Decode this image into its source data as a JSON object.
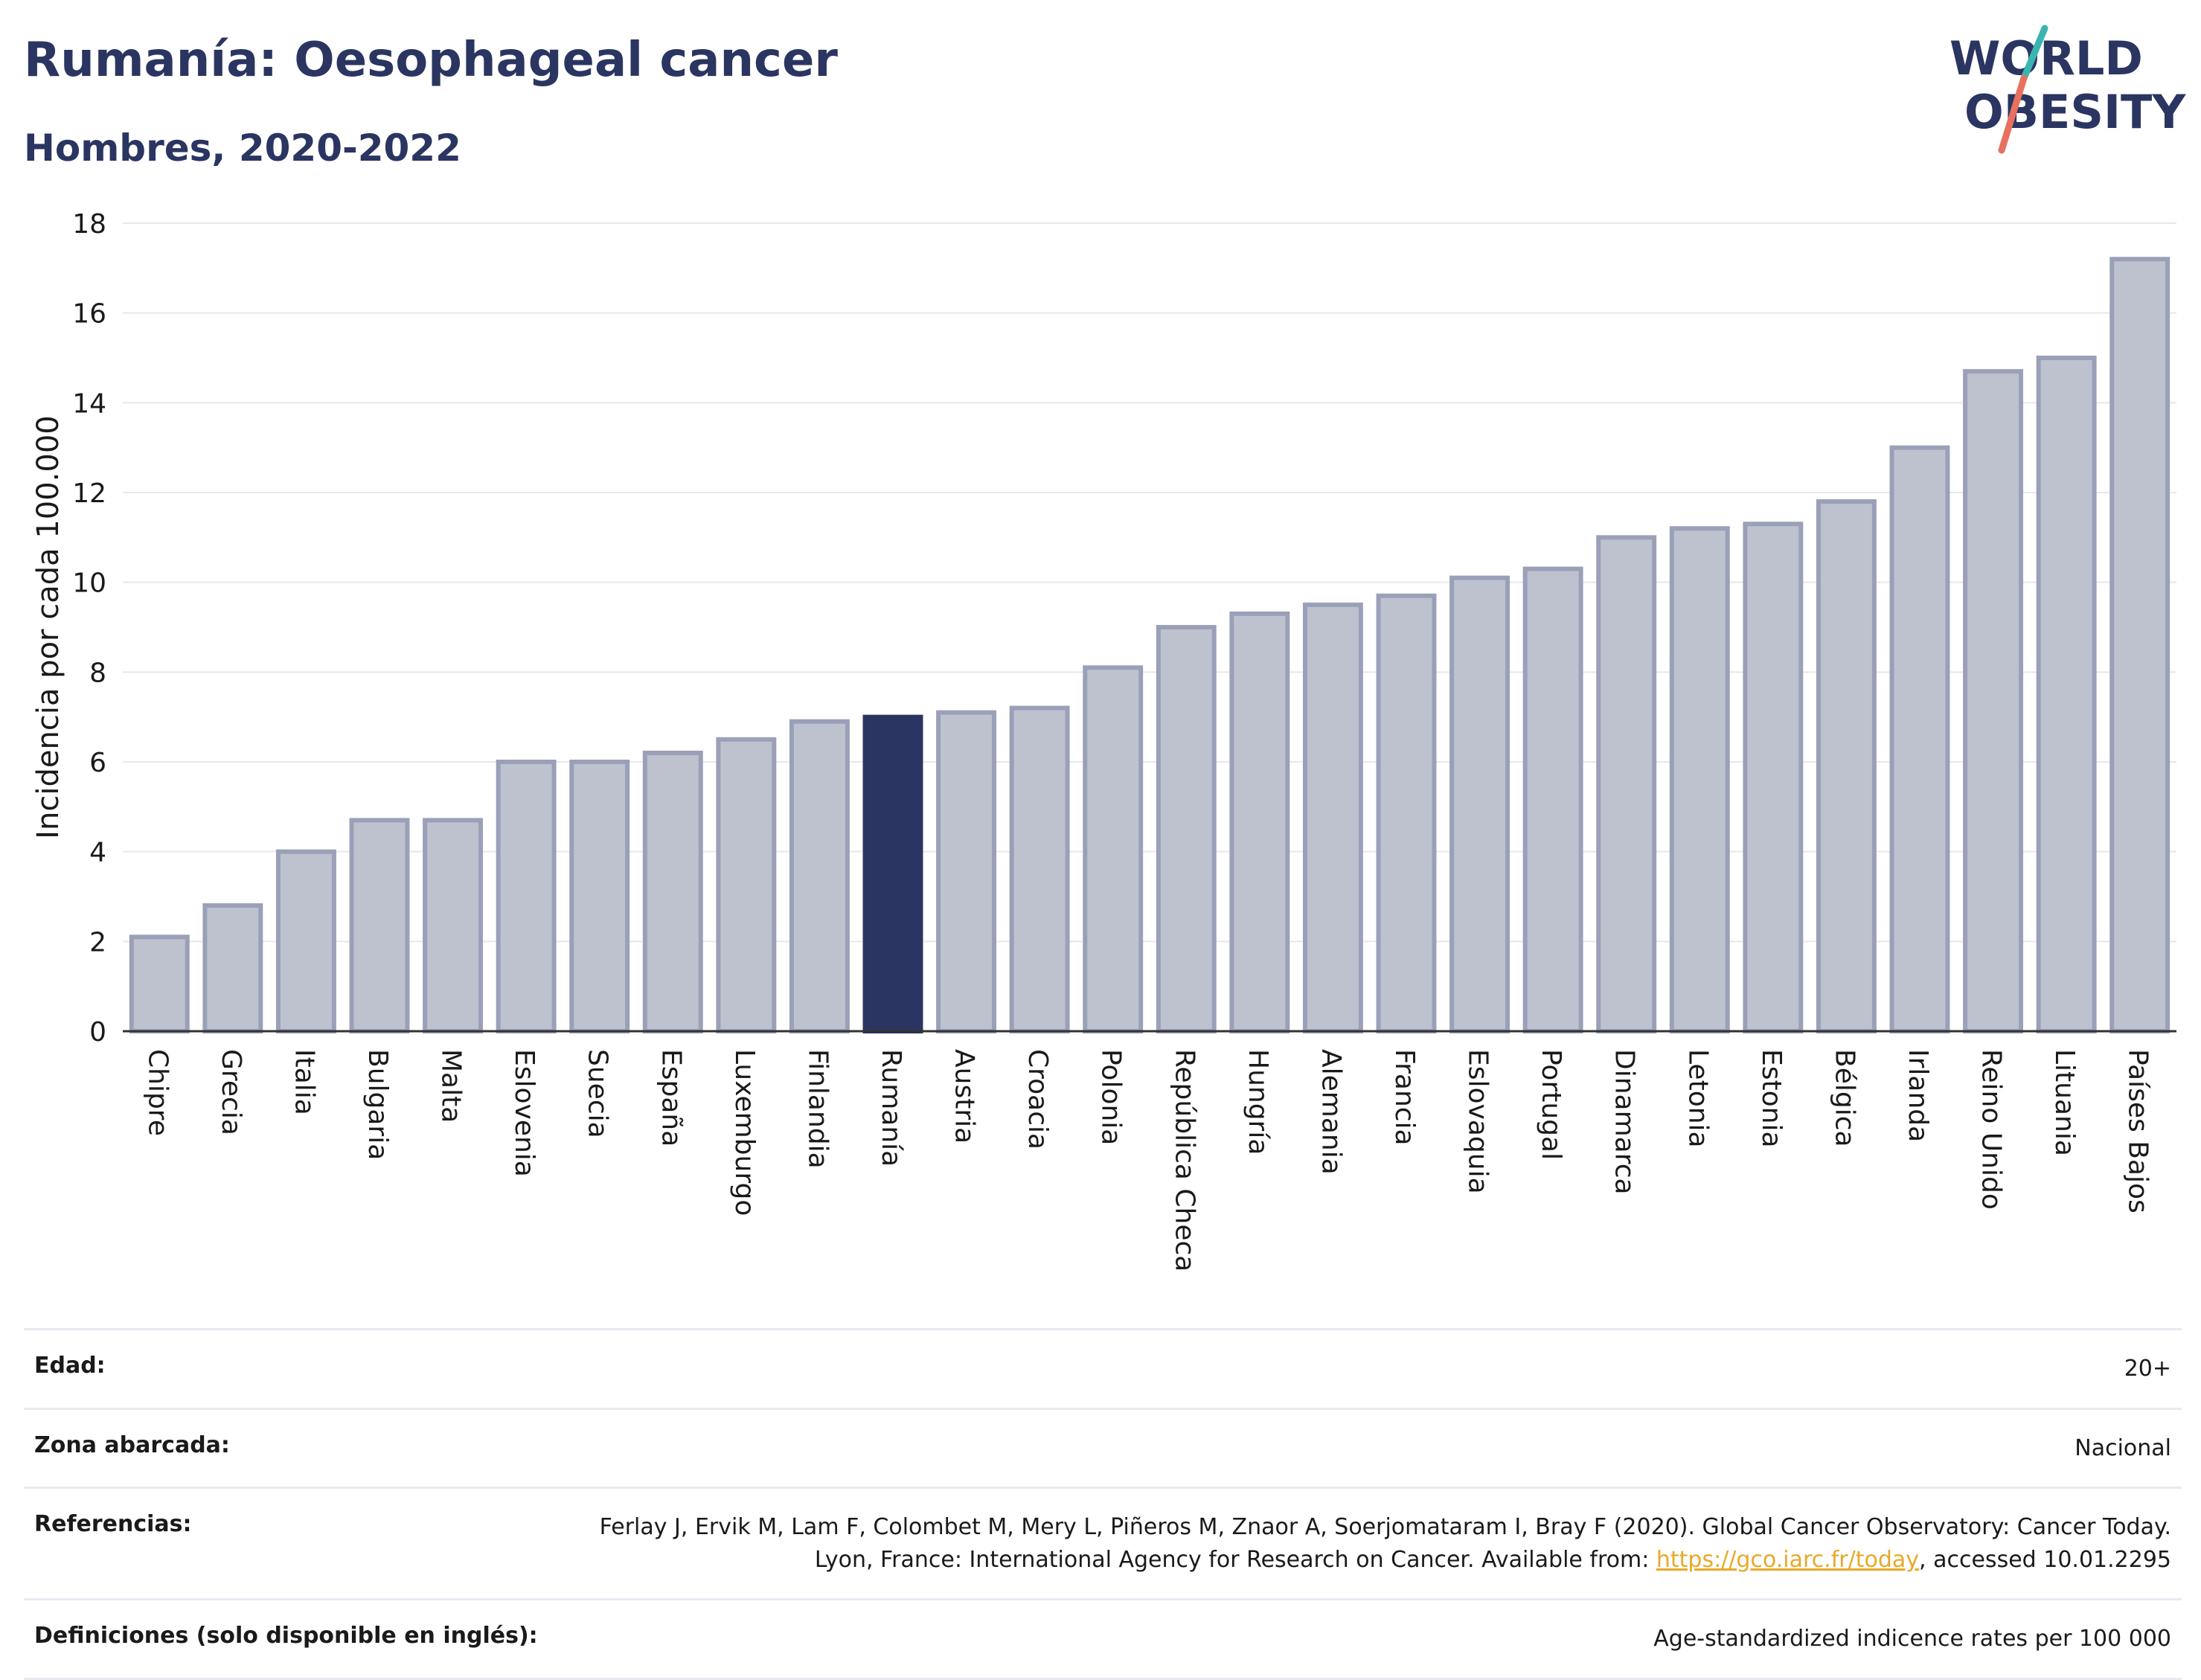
{
  "header": {
    "title": "Rumanía: Oesophageal cancer",
    "subtitle": "Hombres, 2020-2022",
    "logo_line1": "WORLD",
    "logo_line2": "OBESITY"
  },
  "colors": {
    "highlight": "#2b3561",
    "bar_fill": "#bec2cf",
    "bar_stroke": "#9aa0b8",
    "title": "#2b3561",
    "logo_teal": "#3ab5b0",
    "logo_coral": "#e8705f"
  },
  "chart_data": {
    "type": "bar",
    "ylabel": "Incidencia por cada 100.000",
    "xlabel": "",
    "ylim": [
      0,
      18
    ],
    "yticks": [
      0,
      2,
      4,
      6,
      8,
      10,
      12,
      14,
      16,
      18
    ],
    "grid": true,
    "highlight": "Rumanía",
    "categories": [
      "Chipre",
      "Grecia",
      "Italia",
      "Bulgaria",
      "Malta",
      "Eslovenia",
      "Suecia",
      "España",
      "Luxemburgo",
      "Finlandia",
      "Rumanía",
      "Austria",
      "Croacia",
      "Polonia",
      "República Checa",
      "Hungría",
      "Alemania",
      "Francia",
      "Eslovaquia",
      "Portugal",
      "Dinamarca",
      "Letonia",
      "Estonia",
      "Bélgica",
      "Irlanda",
      "Reino Unido",
      "Lituania",
      "Países Bajos"
    ],
    "values": [
      2.1,
      2.8,
      4.0,
      4.7,
      4.7,
      6.0,
      6.0,
      6.2,
      6.5,
      6.9,
      7.0,
      7.1,
      7.2,
      8.1,
      9.0,
      9.3,
      9.5,
      9.7,
      10.1,
      10.3,
      11.0,
      11.2,
      11.3,
      11.8,
      13.0,
      14.7,
      15.0,
      17.2
    ]
  },
  "info": {
    "age_label": "Edad:",
    "age_value": "20+",
    "zone_label": "Zona abarcada:",
    "zone_value": "Nacional",
    "refs_label": "Referencias:",
    "refs_text_1": "Ferlay J, Ervik M, Lam F, Colombet M, Mery L, Piñeros M, Znaor A, Soerjomataram I, Bray F (2020). Global Cancer Observatory: Cancer Today. Lyon, France: International Agency for Research on Cancer. Available from: ",
    "refs_link": "https://gco.iarc.fr/today",
    "refs_text_2": ", accessed 10.01.2295",
    "defs_label": "Definiciones (solo disponible en inglés):",
    "defs_value": "Age-standardized indicence rates per 100 000"
  }
}
